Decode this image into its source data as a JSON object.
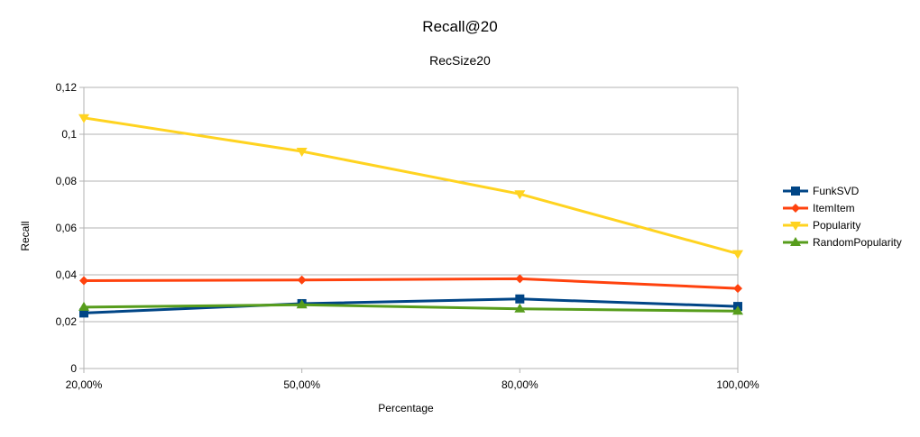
{
  "chart_data": {
    "type": "line",
    "title": "Recall@20",
    "subtitle": "RecSize20",
    "xlabel": "Percentage",
    "ylabel": "Recall",
    "categories": [
      "20,00%",
      "50,00%",
      "80,00%",
      "100,00%"
    ],
    "ylim": [
      0,
      0.12
    ],
    "yticks": [
      0,
      0.02,
      0.04,
      0.06,
      0.08,
      0.1,
      0.12
    ],
    "ytick_labels": [
      "0",
      "0,02",
      "0,04",
      "0,06",
      "0,08",
      "0,1",
      "0,12"
    ],
    "grid": true,
    "legend_position": "right",
    "series": [
      {
        "name": "FunkSVD",
        "color": "#004586",
        "marker": "square",
        "values": [
          0.0237,
          0.0277,
          0.0297,
          0.0265
        ]
      },
      {
        "name": "ItemItem",
        "color": "#ff420e",
        "marker": "diamond",
        "values": [
          0.0375,
          0.0378,
          0.0383,
          0.0342
        ]
      },
      {
        "name": "Popularity",
        "color": "#ffd320",
        "marker": "triangle-down",
        "values": [
          0.107,
          0.0927,
          0.0745,
          0.049
        ]
      },
      {
        "name": "RandomPopularity",
        "color": "#579d1c",
        "marker": "triangle-up",
        "values": [
          0.0262,
          0.0272,
          0.0255,
          0.0245
        ]
      }
    ]
  }
}
